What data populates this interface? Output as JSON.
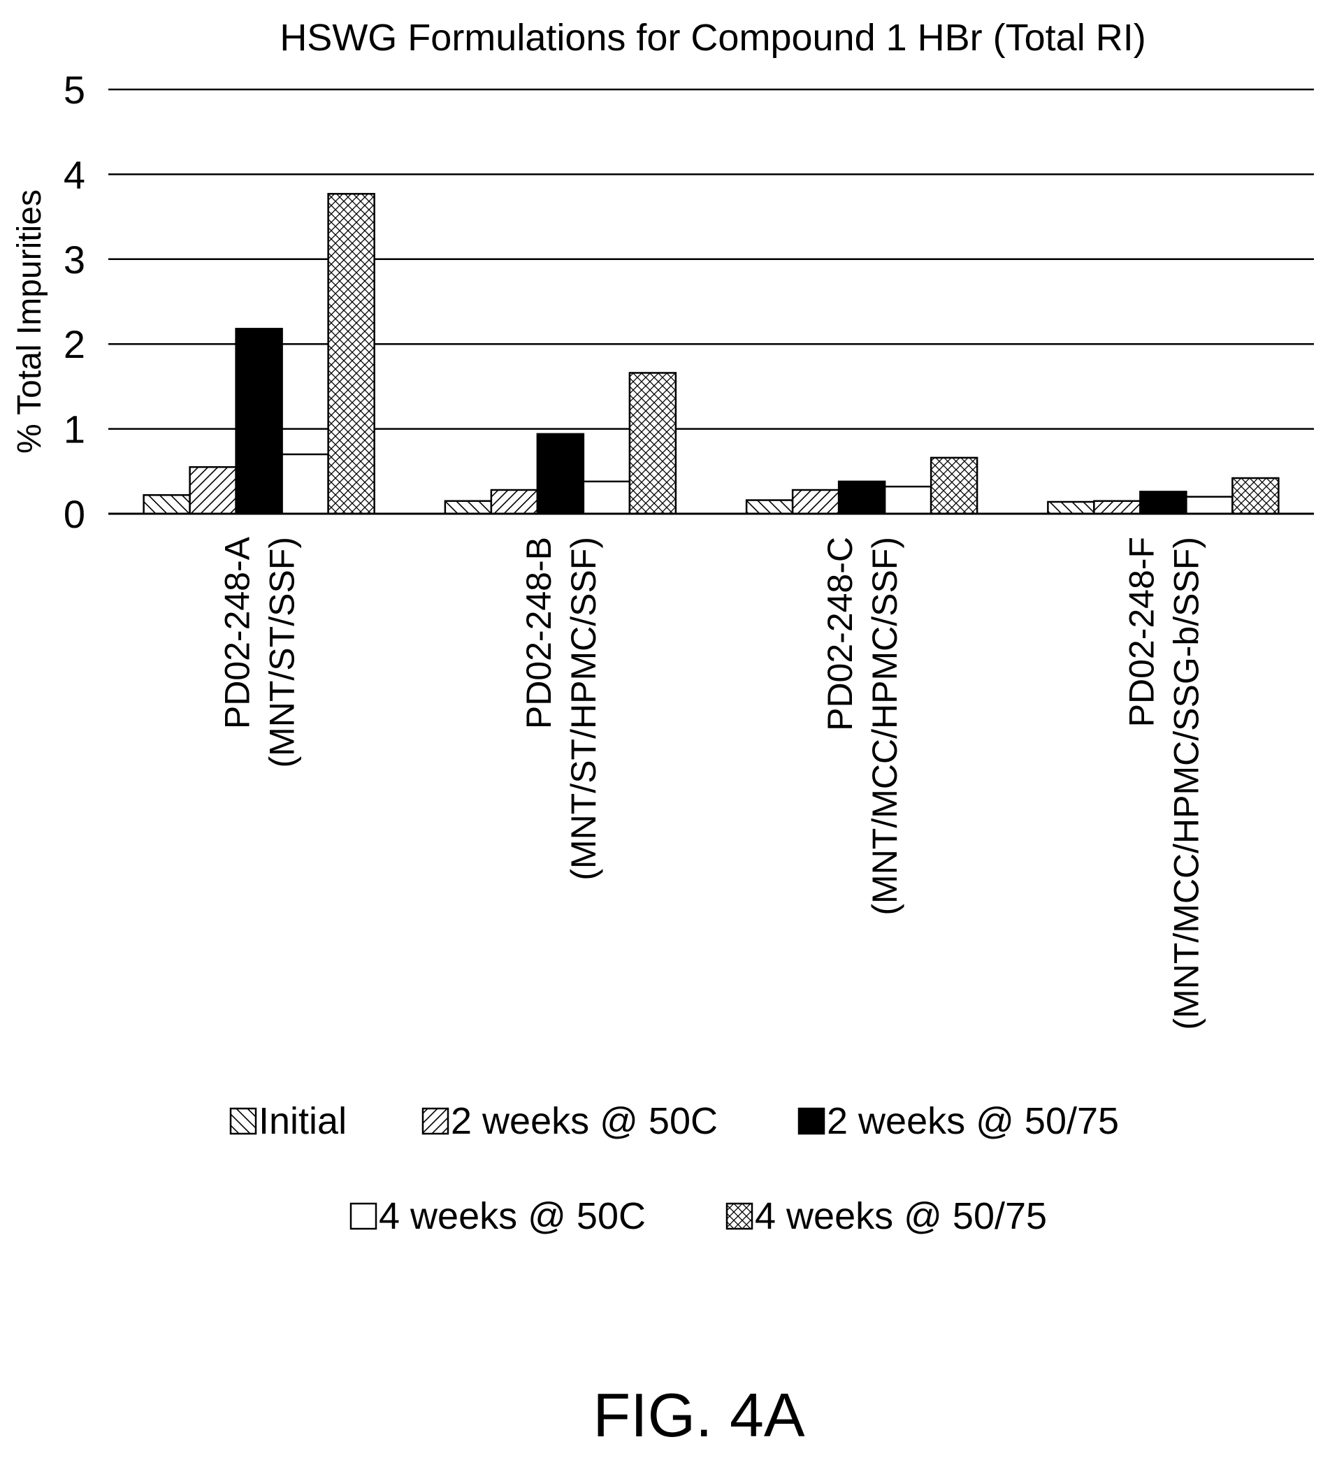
{
  "chart_data": {
    "type": "bar",
    "title": "HSWG Formulations for Compound 1 HBr (Total RI)",
    "xlabel": "",
    "ylabel": "% Total Impurities",
    "ylim": [
      0,
      5
    ],
    "yticks": [
      "0",
      "1",
      "2",
      "3",
      "4",
      "5"
    ],
    "grid": true,
    "legend_position": "bottom",
    "categories": [
      [
        "PD02-248-A",
        "(MNT/ST/SSF)"
      ],
      [
        "PD02-248-B",
        "(MNT/ST/HPMC/SSF)"
      ],
      [
        "PD02-248-C",
        "(MNT/MCC/HPMC/SSF)"
      ],
      [
        "PD02-248-F",
        "(MNT/MCC/HPMC/SSG-b/SSF)"
      ]
    ],
    "series": [
      {
        "name": "Initial",
        "pattern": "hatch-back",
        "values": [
          0.22,
          0.15,
          0.16,
          0.14
        ]
      },
      {
        "name": "2 weeks @ 50C",
        "pattern": "hatch-fwd",
        "values": [
          0.55,
          0.28,
          0.28,
          0.15
        ]
      },
      {
        "name": "2 weeks @ 50/75",
        "pattern": "solid",
        "values": [
          2.18,
          0.94,
          0.38,
          0.26
        ]
      },
      {
        "name": "4 weeks @ 50C",
        "pattern": "empty",
        "values": [
          0.7,
          0.38,
          0.32,
          0.2
        ]
      },
      {
        "name": "4 weeks @ 50/75",
        "pattern": "crosshatch",
        "values": [
          3.77,
          1.66,
          0.66,
          0.42
        ]
      }
    ]
  },
  "figure_label": "FIG. 4A"
}
